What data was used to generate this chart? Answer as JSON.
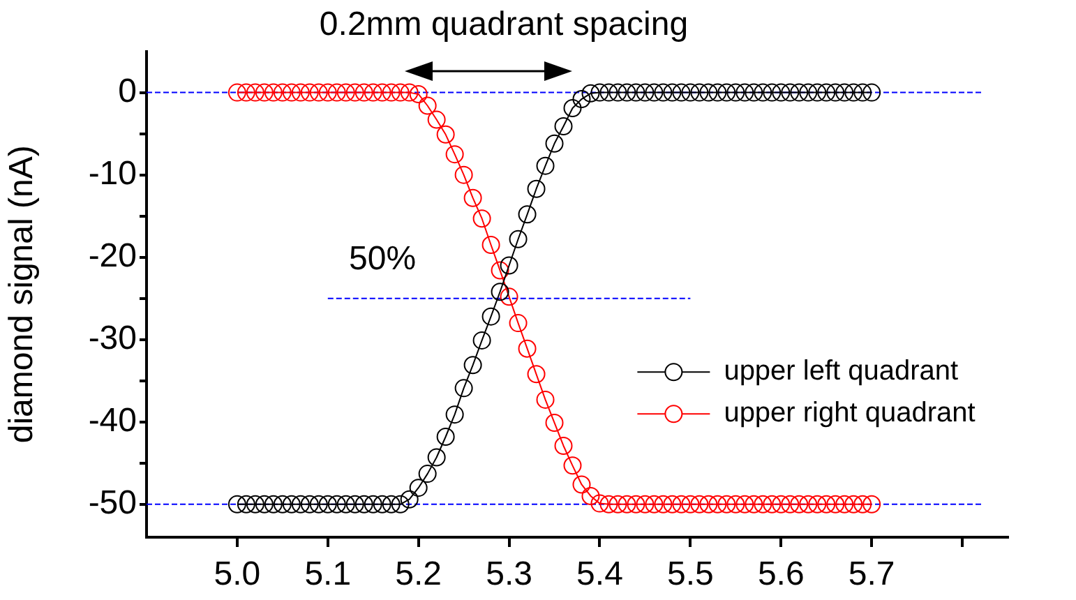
{
  "chart_data": {
    "type": "line",
    "title": "0.2mm quadrant spacing",
    "ylabel": "diamond signal (nA)",
    "x": [
      5.0,
      5.01,
      5.02,
      5.03,
      5.04,
      5.05,
      5.06,
      5.07,
      5.08,
      5.09,
      5.1,
      5.11,
      5.12,
      5.13,
      5.14,
      5.15,
      5.16,
      5.17,
      5.18,
      5.19,
      5.2,
      5.21,
      5.22,
      5.23,
      5.24,
      5.25,
      5.26,
      5.27,
      5.28,
      5.29,
      5.3,
      5.31,
      5.32,
      5.33,
      5.34,
      5.35,
      5.36,
      5.37,
      5.38,
      5.39,
      5.4,
      5.41,
      5.42,
      5.43,
      5.44,
      5.45,
      5.46,
      5.47,
      5.48,
      5.49,
      5.5,
      5.51,
      5.52,
      5.53,
      5.54,
      5.55,
      5.56,
      5.57,
      5.58,
      5.59,
      5.6,
      5.61,
      5.62,
      5.63,
      5.64,
      5.65,
      5.66,
      5.67,
      5.68,
      5.69,
      5.7
    ],
    "series": [
      {
        "name": "upper left quadrant",
        "color": "#000000",
        "values": [
          -50,
          -50,
          -50,
          -50,
          -50,
          -50,
          -50,
          -50,
          -50,
          -50,
          -50,
          -50,
          -50,
          -50,
          -50,
          -50,
          -50,
          -50,
          -50,
          -49.4,
          -48,
          -46.3,
          -44.3,
          -41.8,
          -39.1,
          -35.9,
          -33.1,
          -30.1,
          -27.2,
          -24.2,
          -21,
          -17.8,
          -14.8,
          -11.7,
          -8.9,
          -6.2,
          -4.1,
          -1.9,
          -0.8,
          -0.1,
          0,
          0,
          0,
          0,
          0,
          0,
          0,
          0,
          0,
          0,
          0,
          0,
          0,
          0,
          0,
          0,
          0,
          0,
          0,
          0,
          0,
          0,
          0,
          0,
          0,
          0,
          0,
          0,
          0,
          0,
          0
        ]
      },
      {
        "name": "upper right quadrant",
        "color": "#ff0000",
        "values": [
          0,
          0,
          0,
          0,
          0,
          0,
          0,
          0,
          0,
          0,
          0,
          0,
          0,
          0,
          0,
          0,
          0,
          0,
          0,
          0,
          -0.2,
          -1.6,
          -3.3,
          -5.1,
          -7.5,
          -10,
          -12.8,
          -15.3,
          -18.5,
          -21.6,
          -24.8,
          -28,
          -31.1,
          -34.2,
          -37.3,
          -40.1,
          -42.9,
          -45.3,
          -47.6,
          -49,
          -49.9,
          -50,
          -50,
          -50,
          -50,
          -50,
          -50,
          -50,
          -50,
          -50,
          -50,
          -50,
          -50,
          -50,
          -50,
          -50,
          -50,
          -50,
          -50,
          -50,
          -50,
          -50,
          -50,
          -50,
          -50,
          -50,
          -50,
          -50,
          -50,
          -50,
          -50
        ]
      },
      {
        "type": "line",
        "color": "#0000ff",
        "line_style": "dashed",
        "marker": "none",
        "x": [
          5.1,
          5.5
        ],
        "values": [
          -25,
          -25
        ]
      }
    ],
    "marker": "circle",
    "line_style": "solid",
    "grid": false,
    "legend": "right",
    "xlim": [
      4.9,
      5.85
    ],
    "xticks": [
      {
        "value": 5.0,
        "label": "5.0"
      },
      5.1,
      5.2,
      5.3,
      5.4,
      5.5,
      5.6,
      5.7,
      {
        "value": 5.8,
        "label": null
      }
    ],
    "ylim": [
      -54,
      5
    ],
    "yticks": [
      -50,
      {
        "value": -45,
        "label": null
      },
      -40,
      {
        "value": -35,
        "label": null
      },
      -30,
      {
        "value": -25,
        "label": null
      },
      -20,
      {
        "value": -15,
        "label": null
      },
      -10,
      {
        "value": -5,
        "label": null
      },
      0
    ],
    "ref_lines": [
      {
        "axis": "y",
        "value": 0,
        "color": "#0000ff",
        "line_style": "dashed"
      },
      {
        "axis": "y",
        "value": -50,
        "color": "#0000ff",
        "line_style": "dashed"
      }
    ],
    "annotations": [
      "50%"
    ]
  }
}
